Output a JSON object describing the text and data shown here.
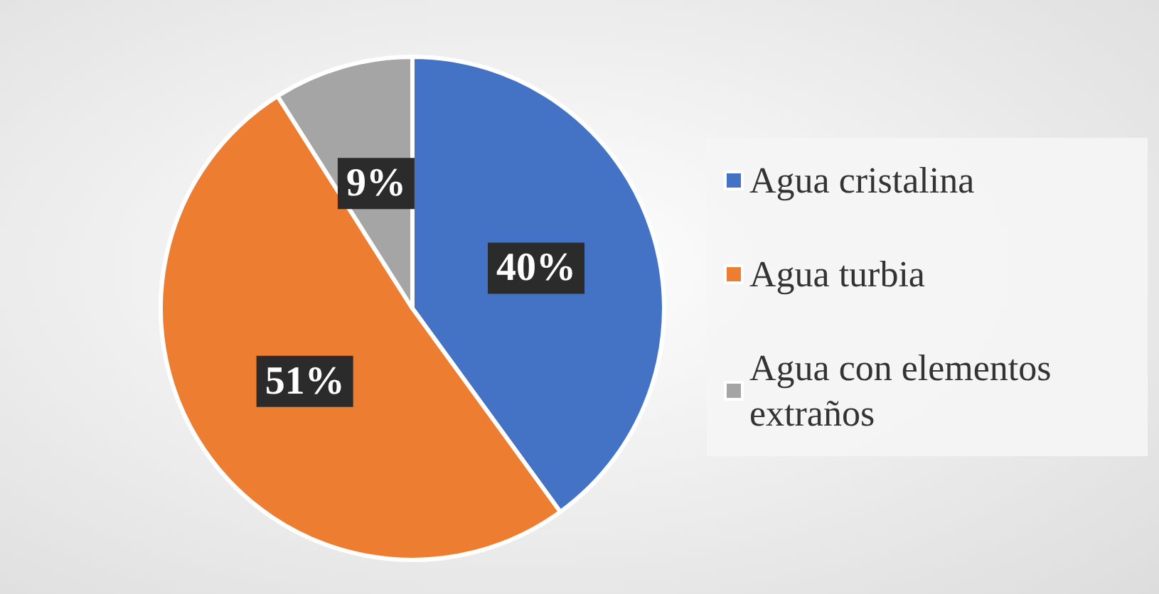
{
  "chart_data": {
    "type": "pie",
    "categories": [
      "Agua cristalina",
      "Agua turbia",
      "Agua con elementos extraños"
    ],
    "values": [
      40,
      51,
      9
    ],
    "colors": [
      "#4472c4",
      "#ed7d31",
      "#a5a5a5"
    ],
    "value_labels": [
      "40%",
      "51%",
      "9%"
    ],
    "legend": "right"
  }
}
